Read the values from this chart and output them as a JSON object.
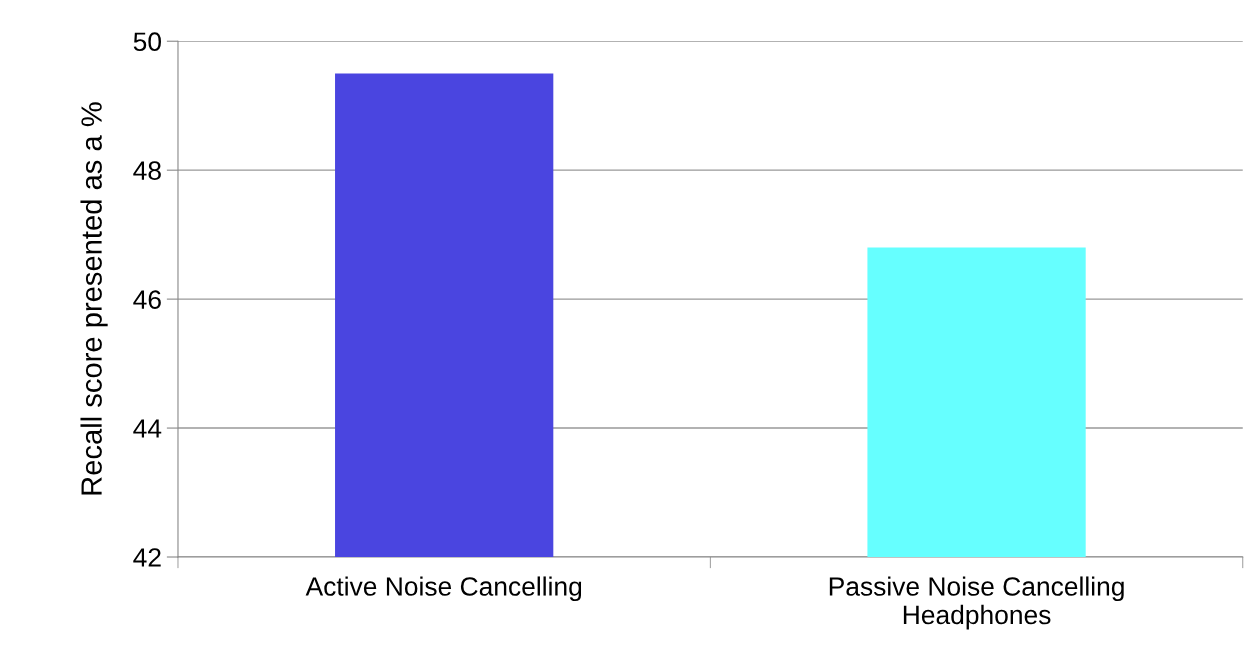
{
  "chart_data": {
    "type": "bar",
    "ylabel": "Recall score presented as a %",
    "categories": [
      "Active Noise Cancelling",
      "Passive Noise Cancelling\nHeadphones"
    ],
    "values": [
      49.5,
      46.8
    ],
    "colors": [
      "#4a45e0",
      "#66ffff"
    ],
    "ylim": [
      42,
      50
    ],
    "yticks": [
      42,
      44,
      46,
      48,
      50
    ],
    "grid": "y",
    "legend": false
  }
}
